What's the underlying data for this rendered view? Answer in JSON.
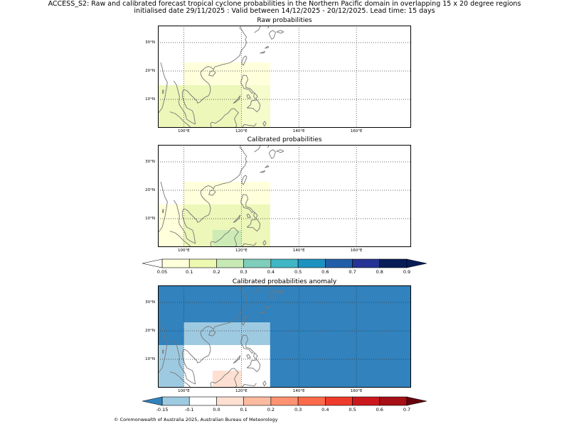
{
  "header": {
    "line1": "ACCESS_S2: Raw and calibrated forecast tropical cyclone probabilities in the Northern Pacific domain in overlapping 15 x 20 degree regions",
    "line2": "initialised date 29/11/2025 :  Valid between 14/12/2025 - 20/12/2025. Lead time: 15 days"
  },
  "map_extent": {
    "lon": [
      91,
      179
    ],
    "lat": [
      0,
      36
    ]
  },
  "axes": {
    "lon_ticks": [
      {
        "value": 100,
        "label": "100°E"
      },
      {
        "value": 120,
        "label": "120°E"
      },
      {
        "value": 140,
        "label": "140°E"
      },
      {
        "value": 160,
        "label": "160°E"
      }
    ],
    "lat_ticks": [
      {
        "value": 10,
        "label": "10°N"
      },
      {
        "value": 20,
        "label": "20°N"
      },
      {
        "value": 30,
        "label": "30°N"
      }
    ]
  },
  "panels": [
    {
      "title": "Raw probabilities",
      "background": "#ffffff",
      "regions": [
        {
          "lon": [
            100,
            130
          ],
          "lat": [
            0,
            23
          ],
          "color": "#ffffdb"
        },
        {
          "lon": [
            91,
            120
          ],
          "lat": [
            0,
            15
          ],
          "color": "#ecf7b9"
        },
        {
          "lon": [
            120,
            130
          ],
          "lat": [
            0,
            15
          ],
          "color": "#f6fbcb"
        },
        {
          "lon": [
            120,
            130
          ],
          "lat": [
            15,
            23
          ],
          "color": "#ffffdb"
        }
      ]
    },
    {
      "title": "Calibrated probabilities",
      "background": "#ffffff",
      "regions": [
        {
          "lon": [
            91,
            100
          ],
          "lat": [
            0,
            15
          ],
          "color": "#ffffdb"
        },
        {
          "lon": [
            100,
            130
          ],
          "lat": [
            15,
            23
          ],
          "color": "#ffffdb"
        },
        {
          "lon": [
            100,
            130
          ],
          "lat": [
            0,
            15
          ],
          "color": "#ecf7b9"
        },
        {
          "lon": [
            110,
            120
          ],
          "lat": [
            0,
            6
          ],
          "color": "#cdebb4"
        }
      ]
    },
    {
      "title": "Calibrated probabilities anomaly",
      "background": "#3182bd",
      "regions": [
        {
          "lon": [
            91,
            100
          ],
          "lat": [
            0,
            15
          ],
          "color": "#9ecae1"
        },
        {
          "lon": [
            100,
            130
          ],
          "lat": [
            15,
            23
          ],
          "color": "#9ecae1"
        },
        {
          "lon": [
            100,
            130
          ],
          "lat": [
            0,
            15
          ],
          "color": "#ffffff"
        },
        {
          "lon": [
            110,
            120
          ],
          "lat": [
            0,
            6
          ],
          "color": "#fee0d2"
        }
      ]
    }
  ],
  "colorbars": [
    {
      "name": "probability",
      "low_extend": "#ffffff",
      "high_extend": "#081d58",
      "colors": [
        "#ffffdb",
        "#edf8b1",
        "#c7e9b4",
        "#7fcdbb",
        "#41b6c4",
        "#1d91c0",
        "#225ea8",
        "#253494",
        "#081d58"
      ],
      "labels": [
        "0.05",
        "0.1",
        "0.2",
        "0.3",
        "0.4",
        "0.5",
        "0.6",
        "0.7",
        "0.8",
        "0.9"
      ]
    },
    {
      "name": "anomaly",
      "low_extend": "#3182bd",
      "high_extend": "#67000d",
      "colors": [
        "#9ecae1",
        "#ffffff",
        "#fee0d2",
        "#fcbba1",
        "#fc9272",
        "#fb6a4a",
        "#ef3b2c",
        "#cb181d",
        "#a50f15"
      ],
      "labels": [
        "-0.15",
        "-0.1",
        "0.0",
        "0.1",
        "0.2",
        "0.3",
        "0.4",
        "0.5",
        "0.6",
        "0.7"
      ]
    }
  ],
  "coastlines": [
    [
      [
        91,
        5
      ],
      [
        92.5,
        7
      ],
      [
        93,
        9
      ],
      [
        93.5,
        11
      ],
      [
        94,
        14
      ],
      [
        94.3,
        16
      ],
      [
        93.5,
        17.5
      ],
      [
        93,
        19
      ],
      [
        92.5,
        21
      ],
      [
        92,
        23
      ]
    ],
    [
      [
        96.5,
        16.5
      ],
      [
        97.5,
        15
      ],
      [
        98,
        13
      ],
      [
        98.5,
        11
      ],
      [
        98.3,
        9
      ],
      [
        98.5,
        8
      ],
      [
        99.5,
        6.5
      ],
      [
        100.5,
        5
      ],
      [
        101,
        3
      ],
      [
        102.5,
        2
      ],
      [
        103.5,
        1.5
      ],
      [
        104,
        1.3
      ],
      [
        103.8,
        2.5
      ],
      [
        103.5,
        4.5
      ],
      [
        103,
        6
      ],
      [
        102,
        6.5
      ],
      [
        101,
        7
      ],
      [
        100.3,
        8.5
      ],
      [
        99.8,
        10
      ],
      [
        99.5,
        11
      ],
      [
        99.5,
        12.5
      ],
      [
        100,
        13.5
      ],
      [
        100.8,
        13.2
      ],
      [
        101.5,
        12.7
      ],
      [
        102,
        12
      ],
      [
        102.5,
        11.5
      ],
      [
        103.5,
        10.5
      ],
      [
        104.5,
        9.5
      ],
      [
        104.8,
        8.7
      ],
      [
        105.5,
        9
      ],
      [
        106,
        9.5
      ],
      [
        106.8,
        10.3
      ],
      [
        107.5,
        10.8
      ],
      [
        108.5,
        11.2
      ],
      [
        109,
        12
      ],
      [
        109.3,
        13.5
      ],
      [
        109,
        15
      ],
      [
        108.5,
        15.7
      ],
      [
        107.5,
        16.5
      ],
      [
        106.5,
        17.5
      ],
      [
        106,
        18.5
      ],
      [
        105.8,
        19.5
      ],
      [
        106.5,
        20.3
      ],
      [
        107.5,
        21.2
      ],
      [
        108.5,
        21.6
      ],
      [
        109.5,
        21.3
      ],
      [
        110.3,
        20.5
      ],
      [
        110.8,
        21.5
      ],
      [
        112,
        21.8
      ],
      [
        113.5,
        22.3
      ],
      [
        114.5,
        22.5
      ],
      [
        116,
        22.9
      ],
      [
        117.5,
        23.8
      ],
      [
        118.5,
        24.6
      ],
      [
        119.5,
        25.5
      ],
      [
        119.8,
        26.8
      ],
      [
        120.5,
        27.8
      ],
      [
        121.2,
        28.6
      ],
      [
        121.8,
        30.1
      ],
      [
        121.4,
        31.1
      ],
      [
        121.8,
        32
      ],
      [
        121,
        33
      ],
      [
        120.3,
        34.3
      ],
      [
        119.5,
        35
      ],
      [
        119.8,
        36
      ]
    ],
    [
      [
        108.7,
        18.5
      ],
      [
        110,
        18.2
      ],
      [
        111,
        19.4
      ],
      [
        110.3,
        20.1
      ],
      [
        109.2,
        19.8
      ],
      [
        108.7,
        18.5
      ]
    ],
    [
      [
        120.2,
        22.5
      ],
      [
        120.7,
        22
      ],
      [
        121.4,
        23.5
      ],
      [
        121.9,
        24.8
      ],
      [
        121.5,
        25.3
      ],
      [
        120.8,
        24.8
      ],
      [
        120.2,
        23.3
      ],
      [
        120.2,
        22.5
      ]
    ],
    [
      [
        120.5,
        18.5
      ],
      [
        121.8,
        18.4
      ],
      [
        122.3,
        17
      ],
      [
        121.6,
        15.5
      ],
      [
        121.6,
        14.2
      ],
      [
        123,
        13.8
      ],
      [
        124.2,
        12.6
      ],
      [
        123.7,
        12.1
      ],
      [
        122.7,
        13.4
      ],
      [
        121.6,
        13.7
      ],
      [
        120.8,
        13.9
      ],
      [
        120.6,
        14.7
      ],
      [
        119.9,
        15.5
      ],
      [
        119.9,
        16.5
      ],
      [
        120.4,
        17.6
      ],
      [
        120.5,
        18.5
      ]
    ],
    [
      [
        122.5,
        11.7
      ],
      [
        123.2,
        10.5
      ],
      [
        122.3,
        10.4
      ],
      [
        121.9,
        11.4
      ],
      [
        122.5,
        11.7
      ]
    ],
    [
      [
        124.5,
        12.4
      ],
      [
        125.6,
        11.1
      ],
      [
        125,
        10.1
      ],
      [
        124.3,
        11
      ],
      [
        124.5,
        12.4
      ]
    ],
    [
      [
        123.5,
        9.5
      ],
      [
        125.5,
        9.8
      ],
      [
        126.5,
        8.2
      ],
      [
        126.3,
        6.6
      ],
      [
        125.4,
        5.6
      ],
      [
        124,
        6.9
      ],
      [
        122,
        7
      ],
      [
        123.2,
        8.1
      ],
      [
        123.5,
        9.5
      ]
    ],
    [
      [
        117.2,
        8.6
      ],
      [
        118.5,
        9.9
      ],
      [
        119.6,
        11.3
      ],
      [
        119.3,
        10.2
      ],
      [
        118,
        9
      ],
      [
        117.2,
        8.6
      ]
    ],
    [
      [
        109.6,
        0
      ],
      [
        109.3,
        1.5
      ],
      [
        109.7,
        2
      ],
      [
        111,
        1.6
      ],
      [
        113,
        3
      ],
      [
        114.3,
        4.5
      ],
      [
        115.4,
        5.2
      ],
      [
        116.5,
        6.6
      ],
      [
        117.5,
        6.8
      ],
      [
        119,
        5.3
      ],
      [
        118.3,
        4.4
      ],
      [
        117.6,
        3.2
      ],
      [
        118.4,
        0.8
      ],
      [
        117.8,
        0
      ]
    ],
    [
      [
        120.3,
        0.2
      ],
      [
        121,
        1.2
      ],
      [
        122.5,
        0.9
      ],
      [
        124.5,
        0.6
      ],
      [
        125.2,
        1.6
      ]
    ],
    [
      [
        127.5,
        1.5
      ],
      [
        128.1,
        2.3
      ],
      [
        128.6,
        1.5
      ],
      [
        128,
        0.6
      ],
      [
        127.5,
        1.5
      ]
    ],
    [
      [
        95.2,
        5.6
      ],
      [
        97,
        5
      ],
      [
        98.5,
        3.8
      ],
      [
        100,
        2.2
      ],
      [
        101.5,
        1
      ],
      [
        102.5,
        0
      ]
    ],
    [
      [
        92.8,
        12
      ],
      [
        93,
        13.2
      ],
      [
        92.7,
        13.3
      ],
      [
        92.6,
        12.3
      ],
      [
        92.8,
        12
      ]
    ],
    [
      [
        124.5,
        33.5
      ],
      [
        126,
        34.5
      ],
      [
        126.5,
        35.5
      ],
      [
        126.6,
        36
      ]
    ],
    [
      [
        129.4,
        36
      ],
      [
        129.5,
        35.4
      ],
      [
        129,
        35.1
      ]
    ],
    [
      [
        129.6,
        33.1
      ],
      [
        130.5,
        31.2
      ],
      [
        131.2,
        31.5
      ],
      [
        131.9,
        33.5
      ],
      [
        131,
        34.3
      ],
      [
        130.1,
        33.8
      ],
      [
        129.6,
        33.1
      ]
    ],
    [
      [
        132.2,
        33.8
      ],
      [
        133.8,
        33.3
      ],
      [
        134.7,
        33.8
      ],
      [
        133.6,
        34.3
      ],
      [
        132.2,
        33.8
      ]
    ],
    [
      [
        126.5,
        26.3
      ],
      [
        128.2,
        26.9
      ],
      [
        127.8,
        26.3
      ],
      [
        126.5,
        26.3
      ]
    ],
    [
      [
        128.2,
        28
      ],
      [
        129.5,
        28.3
      ],
      [
        129.2,
        28.7
      ],
      [
        128.2,
        28
      ]
    ]
  ],
  "footer": {
    "copyright": "© Commonwealth of Australia 2025, Australian Bureau of Meteorology"
  }
}
